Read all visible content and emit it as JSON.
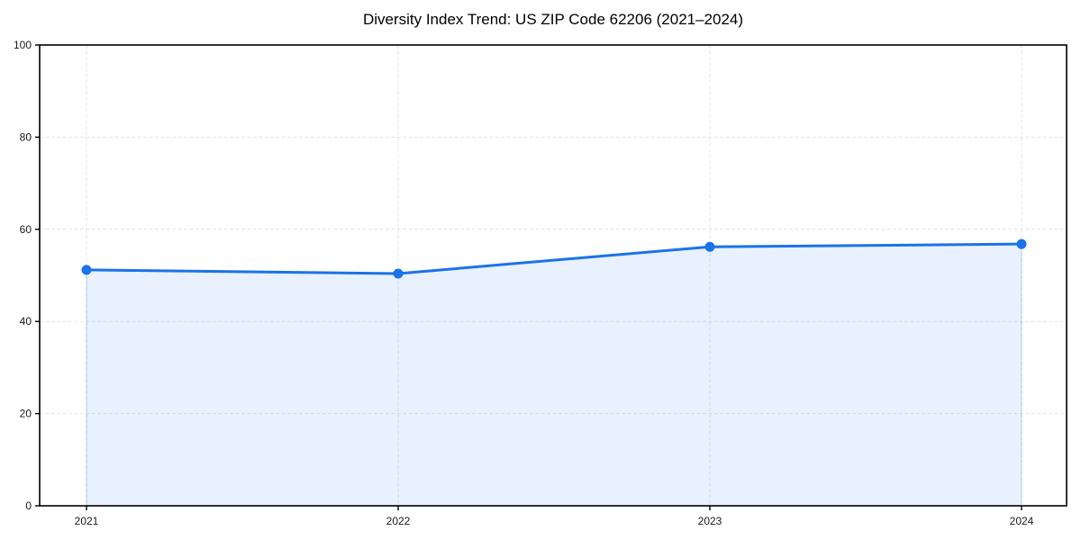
{
  "title": "Diversity Index Trend: US ZIP Code 62206 (2021–2024)",
  "chart_data": {
    "type": "area",
    "title": "Diversity Index Trend: US ZIP Code 62206 (2021–2024)",
    "categories": [
      "2021",
      "2022",
      "2023",
      "2024"
    ],
    "series": [
      {
        "name": "Diversity Index",
        "values": [
          51.2,
          50.4,
          56.2,
          56.8
        ]
      }
    ],
    "xlabel": "",
    "ylabel": "",
    "ylim": [
      0,
      100
    ],
    "y_ticks": [
      0,
      20,
      40,
      60,
      80,
      100
    ],
    "grid": "dashed both",
    "legend": "none",
    "colors": {
      "line": "#1a73e8",
      "marker": "#1a73e8",
      "fill": "rgba(26,115,232,0.10)",
      "fill_edge": "rgba(26,115,232,0.18)",
      "gridline": "#e4e4e4",
      "spine": "#000000",
      "tick_label": "#1a1a1a",
      "background": "#ffffff"
    }
  }
}
